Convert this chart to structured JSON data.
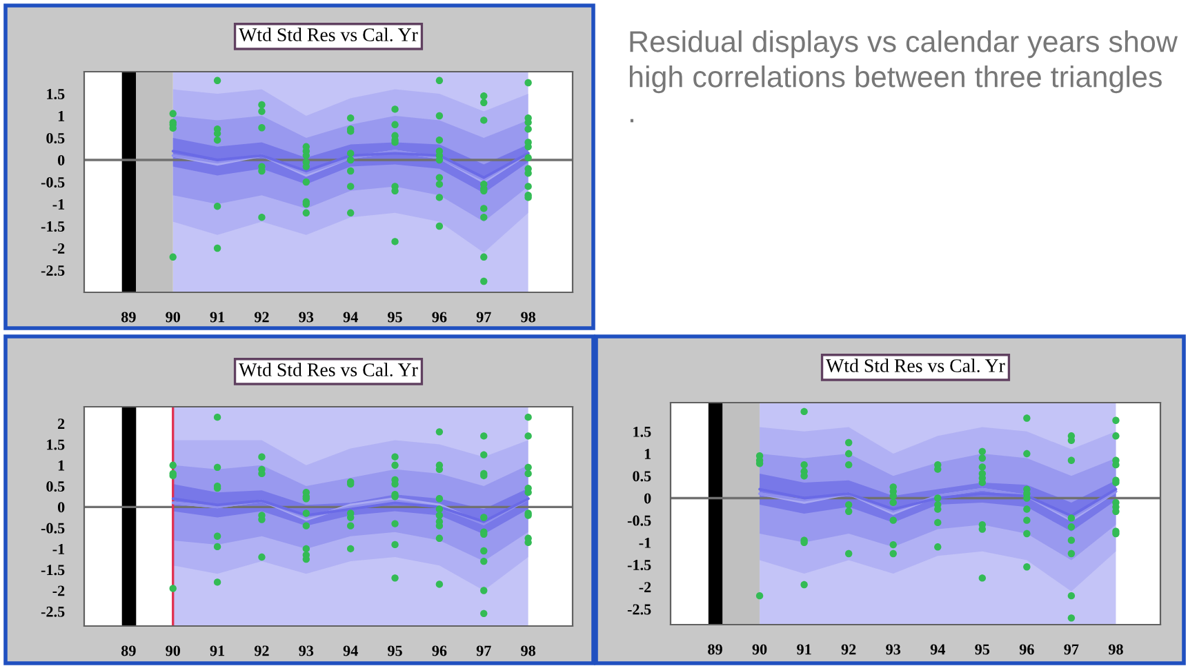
{
  "chart_data": [
    {
      "type": "scatter",
      "title": "Wtd Std Res vs Cal. Yr",
      "xlim": [
        88,
        99
      ],
      "ylim": [
        -3,
        2
      ],
      "xticks": [
        89,
        90,
        91,
        92,
        93,
        94,
        95,
        96,
        97,
        98
      ],
      "yticks": [
        -2.5,
        -2,
        -1.5,
        -1,
        -0.5,
        0,
        0.5,
        1,
        1.5
      ],
      "marker": "circle",
      "bands": [
        {
          "axis": "x",
          "from": 90,
          "to": 98,
          "color": "#c4c4f7"
        },
        {
          "axis": "x",
          "from": 88.85,
          "to": 89.17,
          "color": "#000000"
        },
        {
          "axis": "x",
          "from": 89.17,
          "to": 90,
          "color": "#c0c0c0"
        }
      ],
      "ref_lines": [
        {
          "axis": "y",
          "value": 0,
          "color": "#707070"
        }
      ],
      "series": [
        {
          "type": "line",
          "marker": "none",
          "color": "#a9a9f2",
          "x": [
            90,
            91,
            92,
            93,
            94,
            95,
            96,
            97,
            98
          ],
          "values": [
            0.1,
            -0.1,
            0.1,
            -0.35,
            0.05,
            0.2,
            0.05,
            -0.5,
            0.15
          ],
          "lower": [
            -1.4,
            -1.7,
            -1.4,
            -1.7,
            -1.3,
            -1.2,
            -1.4,
            -2.1,
            -1.2
          ],
          "upper": [
            1.6,
            1.5,
            1.6,
            1.0,
            1.4,
            1.6,
            1.5,
            1.1,
            1.5
          ]
        },
        {
          "type": "line",
          "marker": "none",
          "color": "#8f8fed",
          "x": [
            90,
            91,
            92,
            93,
            94,
            95,
            96,
            97,
            98
          ],
          "values": [
            0.1,
            -0.05,
            0.1,
            -0.3,
            0.05,
            0.2,
            0.05,
            -0.45,
            0.15
          ],
          "lower": [
            -0.8,
            -1.0,
            -0.8,
            -1.1,
            -0.7,
            -0.6,
            -0.8,
            -1.4,
            -0.6
          ],
          "upper": [
            1.0,
            0.9,
            1.0,
            0.5,
            0.8,
            1.0,
            0.9,
            0.5,
            0.9
          ]
        },
        {
          "type": "line",
          "marker": "none",
          "color": "#6a6ae6",
          "x": [
            90,
            91,
            92,
            93,
            94,
            95,
            96,
            97,
            98
          ],
          "values": [
            0.2,
            0,
            0.1,
            -0.25,
            0.1,
            0.15,
            0.1,
            -0.4,
            0.15
          ],
          "lower": [
            -0.15,
            -0.35,
            -0.2,
            -0.55,
            -0.15,
            -0.1,
            -0.2,
            -0.75,
            -0.05
          ],
          "upper": [
            0.5,
            0.3,
            0.4,
            0.05,
            0.35,
            0.4,
            0.35,
            -0.1,
            0.35
          ]
        },
        {
          "type": "scatter",
          "color": "#33bb55",
          "x": [
            90,
            90,
            90,
            90,
            90,
            91,
            91,
            91,
            91,
            91,
            91,
            92,
            92,
            92,
            92,
            92,
            92,
            93,
            93,
            93,
            93,
            93,
            93,
            93,
            93,
            93,
            94,
            94,
            94,
            94,
            94,
            94,
            94,
            94,
            95,
            95,
            95,
            95,
            95,
            95,
            95,
            95,
            96,
            96,
            96,
            96,
            96,
            96,
            96,
            96,
            96,
            96,
            97,
            97,
            97,
            97,
            97,
            97,
            97,
            97,
            97,
            97,
            98,
            98,
            98,
            98,
            98,
            98,
            98,
            98,
            98,
            98,
            98,
            98
          ],
          "values": [
            1.05,
            0.85,
            0.8,
            0.72,
            -2.2,
            1.8,
            0.7,
            0.6,
            0.45,
            -1.05,
            -2.0,
            1.25,
            1.1,
            0.73,
            -0.15,
            -0.25,
            -1.3,
            0.3,
            0.2,
            0.1,
            -0.05,
            -0.15,
            -0.5,
            -0.95,
            -1.0,
            -1.2,
            0.95,
            0.7,
            0.65,
            0.15,
            0,
            -0.25,
            -0.6,
            -1.2,
            1.15,
            0.8,
            0.55,
            0.45,
            0.4,
            -0.6,
            -0.7,
            -1.85,
            1.8,
            1.0,
            0.45,
            0.2,
            0.1,
            0,
            -0.4,
            -0.55,
            -0.85,
            -1.5,
            1.45,
            1.3,
            0.9,
            -0.55,
            -0.65,
            -0.7,
            -1.1,
            -1.3,
            -2.2,
            -2.75,
            1.75,
            0.95,
            0.85,
            0.7,
            0.4,
            0.3,
            0.05,
            -0.2,
            -0.3,
            -0.6,
            -0.8,
            -0.85
          ]
        }
      ]
    },
    {
      "type": "other",
      "annotations": [
        "Residual displays vs calendar years show high correlations between three triangles",
        "."
      ]
    },
    {
      "type": "scatter",
      "title": "Wtd Std Res vs Cal. Yr",
      "xlim": [
        88,
        99
      ],
      "ylim": [
        -2.85,
        2.4
      ],
      "xticks": [
        89,
        90,
        91,
        92,
        93,
        94,
        95,
        96,
        97,
        98
      ],
      "yticks": [
        -2.5,
        -2,
        -1.5,
        -1,
        -0.5,
        0,
        0.5,
        1,
        1.5,
        2
      ],
      "marker": "circle",
      "bands": [
        {
          "axis": "x",
          "from": 90,
          "to": 98,
          "color": "#c4c4f7"
        },
        {
          "axis": "x",
          "from": 88.85,
          "to": 89.17,
          "color": "#000000"
        }
      ],
      "ref_lines": [
        {
          "axis": "y",
          "value": 0,
          "color": "#707070"
        },
        {
          "axis": "x",
          "value": 90,
          "color": "#e03050"
        }
      ],
      "series": [
        {
          "type": "line",
          "marker": "none",
          "color": "#a9a9f2",
          "x": [
            90,
            91,
            92,
            93,
            94,
            95,
            96,
            97,
            98
          ],
          "values": [
            0.1,
            0,
            0.15,
            -0.3,
            0.05,
            0.2,
            0.05,
            -0.4,
            0.2
          ],
          "lower": [
            -1.4,
            -1.6,
            -1.3,
            -1.6,
            -1.3,
            -1.2,
            -1.4,
            -2.0,
            -1.2
          ],
          "upper": [
            1.6,
            1.6,
            1.6,
            1.0,
            1.4,
            1.6,
            1.5,
            1.2,
            1.6
          ]
        },
        {
          "type": "line",
          "marker": "none",
          "color": "#8f8fed",
          "x": [
            90,
            91,
            92,
            93,
            94,
            95,
            96,
            97,
            98
          ],
          "values": [
            0.1,
            0,
            0.15,
            -0.25,
            0,
            0.15,
            0,
            -0.4,
            0.2
          ],
          "lower": [
            -0.8,
            -0.9,
            -0.7,
            -1.0,
            -0.7,
            -0.6,
            -0.8,
            -1.3,
            -0.6
          ],
          "upper": [
            1.0,
            0.9,
            1.0,
            0.5,
            0.7,
            0.9,
            0.8,
            0.5,
            1.0
          ]
        },
        {
          "type": "line",
          "marker": "none",
          "color": "#6a6ae6",
          "x": [
            90,
            91,
            92,
            93,
            94,
            95,
            96,
            97,
            98
          ],
          "values": [
            0.2,
            0.05,
            0.15,
            -0.2,
            -0.05,
            0.1,
            0,
            -0.35,
            0.2
          ],
          "lower": [
            -0.1,
            -0.25,
            -0.1,
            -0.45,
            -0.2,
            -0.1,
            -0.2,
            -0.65,
            -0.05
          ],
          "upper": [
            0.55,
            0.35,
            0.4,
            0.05,
            0.1,
            0.3,
            0.2,
            -0.05,
            0.45
          ]
        },
        {
          "type": "scatter",
          "color": "#33bb55",
          "x": [
            90,
            90,
            90,
            90,
            91,
            91,
            91,
            91,
            91,
            91,
            91,
            92,
            92,
            92,
            92,
            92,
            92,
            93,
            93,
            93,
            93,
            93,
            93,
            93,
            93,
            94,
            94,
            94,
            94,
            94,
            94,
            95,
            95,
            95,
            95,
            95,
            95,
            95,
            95,
            95,
            96,
            96,
            96,
            96,
            96,
            96,
            96,
            96,
            96,
            96,
            97,
            97,
            97,
            97,
            97,
            97,
            97,
            97,
            97,
            97,
            97,
            98,
            98,
            98,
            98,
            98,
            98,
            98,
            98,
            98,
            98
          ],
          "values": [
            1.0,
            0.8,
            0.75,
            -1.95,
            2.15,
            0.95,
            0.5,
            0.45,
            -0.7,
            -0.95,
            -1.8,
            1.2,
            0.9,
            0.8,
            -0.2,
            -0.3,
            -1.2,
            0.35,
            0.25,
            0.2,
            -0.15,
            -0.45,
            -1.0,
            -1.15,
            -1.25,
            0.6,
            0.55,
            -0.15,
            -0.25,
            -0.45,
            -1.0,
            1.2,
            1.0,
            0.65,
            0.55,
            0.3,
            0.25,
            -0.4,
            -0.9,
            -1.7,
            1.8,
            1.0,
            0.9,
            0.2,
            -0.05,
            -0.2,
            -0.35,
            -0.45,
            -0.75,
            -1.85,
            1.7,
            1.25,
            0.8,
            0.75,
            -0.25,
            -0.6,
            -0.65,
            -1.05,
            -1.3,
            -2.0,
            -2.55,
            2.15,
            1.7,
            0.95,
            0.8,
            0.45,
            0.35,
            -0.15,
            -0.2,
            -0.75,
            -0.85
          ]
        }
      ]
    },
    {
      "type": "scatter",
      "title": "Wtd Std Res vs Cal. Yr",
      "xlim": [
        88,
        99
      ],
      "ylim": [
        -2.85,
        2.15
      ],
      "xticks": [
        89,
        90,
        91,
        92,
        93,
        94,
        95,
        96,
        97,
        98
      ],
      "yticks": [
        -2.5,
        -2,
        -1.5,
        -1,
        -0.5,
        0,
        0.5,
        1,
        1.5
      ],
      "marker": "circle",
      "bands": [
        {
          "axis": "x",
          "from": 90,
          "to": 98,
          "color": "#c4c4f7"
        },
        {
          "axis": "x",
          "from": 88.85,
          "to": 89.17,
          "color": "#000000"
        },
        {
          "axis": "x",
          "from": 89.17,
          "to": 90,
          "color": "#c0c0c0"
        }
      ],
      "ref_lines": [
        {
          "axis": "y",
          "value": 0,
          "color": "#707070"
        }
      ],
      "series": [
        {
          "type": "line",
          "marker": "none",
          "color": "#a9a9f2",
          "x": [
            90,
            91,
            92,
            93,
            94,
            95,
            96,
            97,
            98
          ],
          "values": [
            0.1,
            -0.1,
            0.1,
            -0.35,
            0.05,
            0.2,
            0.05,
            -0.5,
            0.15
          ],
          "lower": [
            -1.4,
            -1.7,
            -1.4,
            -1.7,
            -1.3,
            -1.2,
            -1.4,
            -2.1,
            -1.2
          ],
          "upper": [
            1.6,
            1.5,
            1.6,
            1.0,
            1.4,
            1.6,
            1.5,
            1.1,
            1.5
          ]
        },
        {
          "type": "line",
          "marker": "none",
          "color": "#8f8fed",
          "x": [
            90,
            91,
            92,
            93,
            94,
            95,
            96,
            97,
            98
          ],
          "values": [
            0.1,
            -0.05,
            0.1,
            -0.3,
            0.05,
            0.2,
            0.05,
            -0.45,
            0.15
          ],
          "lower": [
            -0.8,
            -1.0,
            -0.8,
            -1.1,
            -0.7,
            -0.6,
            -0.8,
            -1.4,
            -0.6
          ],
          "upper": [
            1.0,
            0.9,
            1.0,
            0.5,
            0.8,
            1.0,
            0.9,
            0.5,
            0.9
          ]
        },
        {
          "type": "line",
          "marker": "none",
          "color": "#6a6ae6",
          "x": [
            90,
            91,
            92,
            93,
            94,
            95,
            96,
            97,
            98
          ],
          "values": [
            0.2,
            0,
            0.1,
            -0.25,
            0,
            0.1,
            0.05,
            -0.4,
            0.2
          ],
          "lower": [
            -0.15,
            -0.35,
            -0.2,
            -0.55,
            -0.15,
            -0.1,
            -0.2,
            -0.75,
            -0.05
          ],
          "upper": [
            0.55,
            0.35,
            0.4,
            0.05,
            0.2,
            0.35,
            0.3,
            -0.1,
            0.4
          ]
        },
        {
          "type": "scatter",
          "color": "#33bb55",
          "x": [
            90,
            90,
            90,
            90,
            91,
            91,
            91,
            91,
            91,
            91,
            91,
            92,
            92,
            92,
            92,
            92,
            92,
            93,
            93,
            93,
            93,
            93,
            93,
            93,
            94,
            94,
            94,
            94,
            94,
            94,
            94,
            95,
            95,
            95,
            95,
            95,
            95,
            95,
            95,
            95,
            96,
            96,
            96,
            96,
            96,
            96,
            96,
            96,
            96,
            97,
            97,
            97,
            97,
            97,
            97,
            97,
            97,
            97,
            98,
            98,
            98,
            98,
            98,
            98,
            98,
            98,
            98,
            98,
            98
          ],
          "values": [
            0.95,
            0.85,
            0.78,
            -2.2,
            1.95,
            0.75,
            0.6,
            0.5,
            -0.95,
            -1.0,
            -1.95,
            1.25,
            1.0,
            0.75,
            -0.15,
            -0.3,
            -1.25,
            0.25,
            0.15,
            0.05,
            -0.1,
            -0.5,
            -1.05,
            -1.25,
            0.75,
            0.65,
            0.0,
            -0.15,
            -0.25,
            -0.55,
            -1.1,
            1.05,
            0.9,
            0.7,
            0.55,
            0.45,
            0.35,
            -0.6,
            -0.7,
            -1.8,
            1.8,
            1.0,
            0.2,
            0.1,
            0.0,
            -0.25,
            -0.5,
            -0.8,
            -1.55,
            1.4,
            1.3,
            0.85,
            -0.45,
            -0.65,
            -0.95,
            -1.25,
            -2.2,
            -2.7,
            1.75,
            1.4,
            0.85,
            0.75,
            0.4,
            0.35,
            -0.1,
            -0.2,
            -0.3,
            -0.75,
            -0.8
          ]
        }
      ]
    }
  ]
}
